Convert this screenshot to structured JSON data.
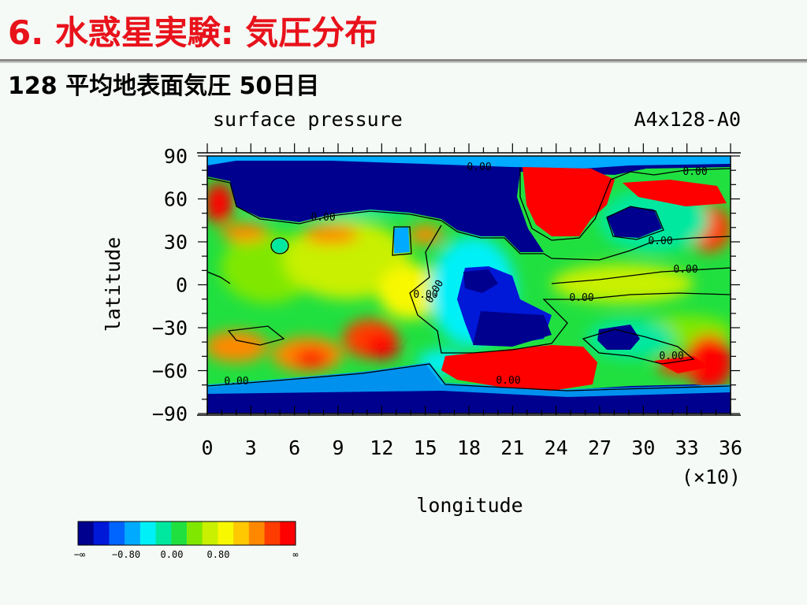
{
  "slide": {
    "title": "6. 水惑星実験: 気圧分布",
    "subtitle": "128 平均地表面気圧 50日目"
  },
  "chart_data": {
    "type": "heatmap",
    "title": "surface pressure",
    "run_label": "A4x128-A0",
    "xlabel": "longitude",
    "x_multiplier": "(×10)",
    "ylabel": "latitude",
    "xlim": [
      0,
      36
    ],
    "ylim": [
      -90,
      90
    ],
    "x_ticks": [
      "0",
      "3",
      "6",
      "9",
      "12",
      "15",
      "18",
      "21",
      "24",
      "27",
      "30",
      "33",
      "36"
    ],
    "y_ticks": [
      "90",
      "60",
      "30",
      "0",
      "−30",
      "−60",
      "−90"
    ],
    "contour_labels": [
      "0.00",
      "0.00",
      "0.00",
      "0.00",
      "0.00",
      "0.00",
      "0.00",
      "0.00",
      "0.00",
      "0.00",
      "0.00"
    ],
    "colorbar": {
      "colors": [
        "#00008e",
        "#0018d8",
        "#0064ff",
        "#00aaff",
        "#00f0f8",
        "#00e8a0",
        "#20e040",
        "#80e800",
        "#c8f000",
        "#f8f800",
        "#ffc800",
        "#ff8800",
        "#ff3c00",
        "#ff0000"
      ],
      "labels": [
        "−∞",
        "−0.80",
        "0.00",
        "0.80",
        "∞"
      ]
    }
  }
}
